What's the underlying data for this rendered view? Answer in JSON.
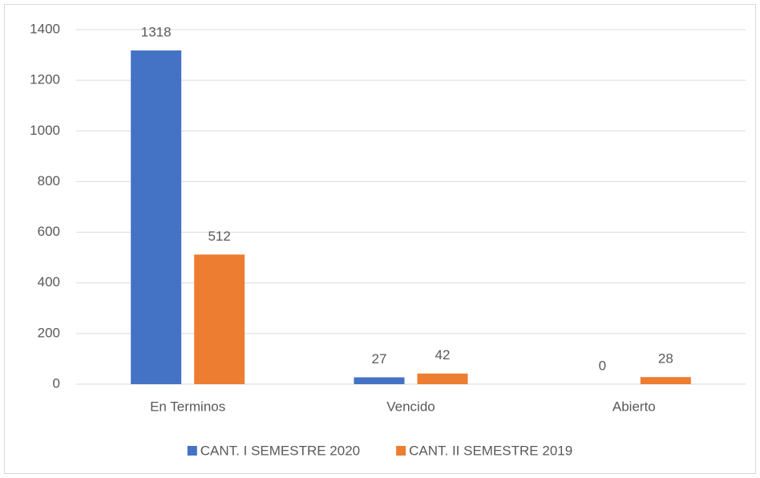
{
  "chart_data": {
    "type": "bar",
    "categories": [
      "En Terminos",
      "Vencido",
      "Abierto"
    ],
    "series": [
      {
        "name": "CANT. I SEMESTRE 2020",
        "color": "#4472c4",
        "values": [
          1318,
          27,
          0
        ]
      },
      {
        "name": "CANT. II SEMESTRE 2019",
        "color": "#ed7d31",
        "values": [
          512,
          42,
          28
        ]
      }
    ],
    "ylim": [
      0,
      1400
    ],
    "yticks": [
      0,
      200,
      400,
      600,
      800,
      1000,
      1200,
      1400
    ],
    "grid": true,
    "legend": "bottom"
  }
}
